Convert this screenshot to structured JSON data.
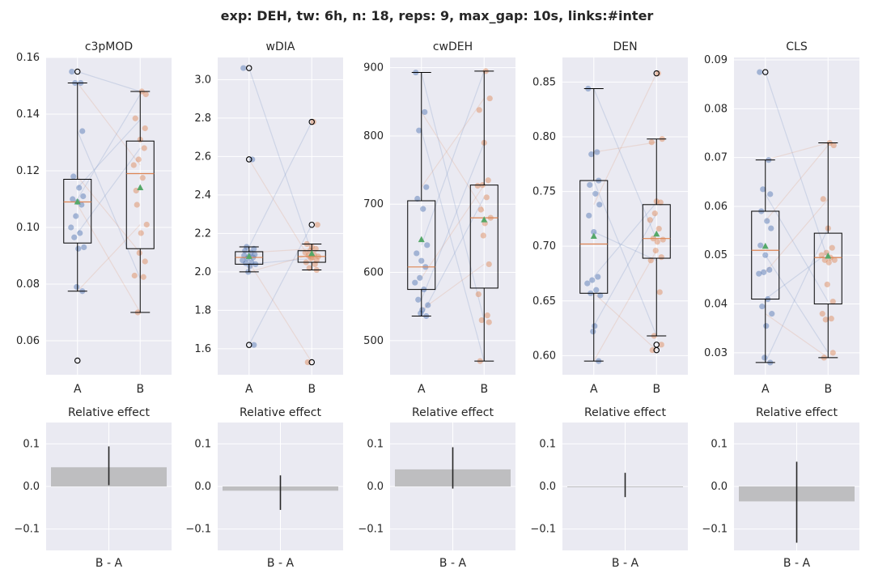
{
  "suptitle": "exp: DEH, tw: 6h, n: 18, reps: 9, max_gap: 10s, links:#inter",
  "colors": {
    "plot_bg": "#eaeaf2",
    "grid": "#ffffff",
    "group_a": "#4c72b0",
    "group_b": "#dd8452",
    "mean_marker": "#55a868",
    "median": "#dd8452",
    "effect_bar": "#bebec0",
    "error_line": "#262626"
  },
  "chart_data": [
    {
      "type": "box",
      "title": "c3pMOD",
      "categories": [
        "A",
        "B"
      ],
      "ylim": [
        0.048,
        0.16
      ],
      "yticks": [
        0.06,
        0.08,
        0.1,
        0.12,
        0.14,
        0.16
      ],
      "yticklabels": [
        "0.06",
        "0.08",
        "0.10",
        "0.12",
        "0.14",
        "0.16"
      ],
      "boxes": [
        {
          "q1": 0.0945,
          "median": 0.109,
          "q3": 0.117,
          "whislo": 0.0775,
          "whishi": 0.151,
          "mean": 0.109,
          "fliers": [
            0.053,
            0.155
          ]
        },
        {
          "q1": 0.0925,
          "median": 0.119,
          "q3": 0.1305,
          "whislo": 0.07,
          "whishi": 0.148,
          "mean": 0.114,
          "fliers": []
        }
      ],
      "points_a": [
        0.155,
        0.151,
        0.151,
        0.134,
        0.118,
        0.114,
        0.111,
        0.11,
        0.109,
        0.108,
        0.104,
        0.1,
        0.098,
        0.0965,
        0.093,
        0.0925,
        0.079,
        0.0775
      ],
      "points_b": [
        0.148,
        0.147,
        0.1385,
        0.131,
        0.128,
        0.124,
        0.122,
        0.1175,
        0.108,
        0.101,
        0.098,
        0.091,
        0.088,
        0.083,
        0.0825,
        0.07,
        0.135,
        0.113
      ],
      "links": [
        [
          0.155,
          0.148
        ],
        [
          0.151,
          0.122
        ],
        [
          0.134,
          0.082
        ],
        [
          0.118,
          0.091
        ],
        [
          0.11,
          0.147
        ],
        [
          0.108,
          0.07
        ],
        [
          0.098,
          0.128
        ],
        [
          0.0775,
          0.101
        ],
        [
          0.114,
          0.138
        ]
      ],
      "effect": {
        "label": "B - A",
        "title": "Relative effect",
        "value": 0.045,
        "ci": [
          0.003,
          0.094
        ]
      }
    },
    {
      "type": "box",
      "title": "wDIA",
      "categories": [
        "A",
        "B"
      ],
      "ylim": [
        1.465,
        3.115
      ],
      "yticks": [
        1.6,
        1.8,
        2.0,
        2.2,
        2.4,
        2.6,
        2.8,
        3.0
      ],
      "yticklabels": [
        "1.6",
        "1.8",
        "2.0",
        "2.2",
        "2.4",
        "2.6",
        "2.8",
        "3.0"
      ],
      "boxes": [
        {
          "q1": 2.04,
          "median": 2.075,
          "q3": 2.105,
          "whislo": 2.0,
          "whishi": 2.13,
          "mean": 2.08,
          "fliers": [
            3.06,
            2.585,
            1.62
          ]
        },
        {
          "q1": 2.05,
          "median": 2.08,
          "q3": 2.11,
          "whislo": 2.01,
          "whishi": 2.145,
          "mean": 2.095,
          "fliers": [
            2.78,
            2.245,
            1.53
          ]
        }
      ],
      "points_a": [
        3.06,
        2.585,
        2.13,
        2.12,
        2.11,
        2.1,
        2.09,
        2.085,
        2.08,
        2.075,
        2.07,
        2.06,
        2.05,
        2.045,
        2.04,
        2.03,
        2.0,
        1.62
      ],
      "points_b": [
        2.78,
        2.245,
        2.145,
        2.13,
        2.12,
        2.11,
        2.1,
        2.09,
        2.085,
        2.08,
        2.075,
        2.07,
        2.06,
        2.05,
        2.04,
        2.02,
        2.01,
        1.53
      ],
      "links": [
        [
          3.06,
          2.1
        ],
        [
          2.585,
          2.05
        ],
        [
          2.13,
          2.78
        ],
        [
          2.05,
          1.53
        ],
        [
          1.62,
          2.245
        ],
        [
          2.1,
          2.12
        ],
        [
          2.04,
          2.07
        ],
        [
          2.0,
          2.09
        ]
      ],
      "effect": {
        "label": "B - A",
        "title": "Relative effect",
        "value": -0.01,
        "ci": [
          -0.055,
          0.026
        ]
      }
    },
    {
      "type": "box",
      "title": "cwDEH",
      "categories": [
        "A",
        "B"
      ],
      "ylim": [
        450,
        915
      ],
      "yticks": [
        500,
        600,
        700,
        800,
        900
      ],
      "yticklabels": [
        "500",
        "600",
        "700",
        "800",
        "900"
      ],
      "boxes": [
        {
          "q1": 575,
          "median": 608,
          "q3": 705,
          "whislo": 536,
          "whishi": 893,
          "mean": 648,
          "fliers": []
        },
        {
          "q1": 577,
          "median": 680,
          "q3": 728,
          "whislo": 470,
          "whishi": 895,
          "mean": 677,
          "fliers": []
        }
      ],
      "points_a": [
        893,
        835,
        808,
        725,
        708,
        693,
        640,
        628,
        617,
        608,
        592,
        585,
        575,
        560,
        552,
        545,
        540,
        536
      ],
      "points_b": [
        895,
        855,
        838,
        790,
        735,
        728,
        727,
        710,
        692,
        680,
        672,
        654,
        612,
        568,
        537,
        530,
        527,
        470
      ],
      "links": [
        [
          893,
          530
        ],
        [
          835,
          690
        ],
        [
          808,
          470
        ],
        [
          725,
          855
        ],
        [
          640,
          895
        ],
        [
          592,
          728
        ],
        [
          560,
          790
        ],
        [
          545,
          612
        ],
        [
          536,
          710
        ]
      ],
      "effect": {
        "label": "B - A",
        "title": "Relative effect",
        "value": 0.04,
        "ci": [
          -0.005,
          0.092
        ]
      }
    },
    {
      "type": "box",
      "title": "DEN",
      "categories": [
        "A",
        "B"
      ],
      "ylim": [
        0.5825,
        0.8725
      ],
      "yticks": [
        0.6,
        0.65,
        0.7,
        0.75,
        0.8,
        0.85
      ],
      "yticklabels": [
        "0.60",
        "0.65",
        "0.70",
        "0.75",
        "0.80",
        "0.85"
      ],
      "boxes": [
        {
          "q1": 0.657,
          "median": 0.702,
          "q3": 0.76,
          "whislo": 0.595,
          "whishi": 0.844,
          "mean": 0.709,
          "fliers": []
        },
        {
          "q1": 0.689,
          "median": 0.707,
          "q3": 0.738,
          "whislo": 0.618,
          "whishi": 0.798,
          "mean": 0.711,
          "fliers": [
            0.858,
            0.61,
            0.605
          ]
        }
      ],
      "points_a": [
        0.844,
        0.786,
        0.784,
        0.76,
        0.756,
        0.748,
        0.738,
        0.728,
        0.713,
        0.672,
        0.669,
        0.666,
        0.66,
        0.657,
        0.655,
        0.627,
        0.622,
        0.595
      ],
      "points_b": [
        0.858,
        0.798,
        0.795,
        0.741,
        0.74,
        0.73,
        0.724,
        0.716,
        0.707,
        0.706,
        0.704,
        0.696,
        0.69,
        0.687,
        0.658,
        0.618,
        0.61,
        0.605
      ],
      "links": [
        [
          0.844,
          0.706
        ],
        [
          0.786,
          0.795
        ],
        [
          0.76,
          0.618
        ],
        [
          0.738,
          0.858
        ],
        [
          0.672,
          0.74
        ],
        [
          0.657,
          0.605
        ],
        [
          0.627,
          0.73
        ],
        [
          0.595,
          0.696
        ],
        [
          0.713,
          0.687
        ]
      ],
      "effect": {
        "label": "B - A",
        "title": "Relative effect",
        "value": 0.0,
        "ci": [
          -0.025,
          0.032
        ]
      }
    },
    {
      "type": "box",
      "title": "CLS",
      "categories": [
        "A",
        "B"
      ],
      "ylim": [
        0.0255,
        0.0905
      ],
      "yticks": [
        0.03,
        0.04,
        0.05,
        0.06,
        0.07,
        0.08,
        0.09
      ],
      "yticklabels": [
        "0.03",
        "0.04",
        "0.05",
        "0.06",
        "0.07",
        "0.08",
        "0.09"
      ],
      "boxes": [
        {
          "q1": 0.041,
          "median": 0.051,
          "q3": 0.059,
          "whislo": 0.028,
          "whishi": 0.0695,
          "mean": 0.0518,
          "fliers": [
            0.0875
          ]
        },
        {
          "q1": 0.04,
          "median": 0.0495,
          "q3": 0.0545,
          "whislo": 0.029,
          "whishi": 0.073,
          "mean": 0.0498,
          "fliers": []
        }
      ],
      "points_a": [
        0.0875,
        0.0695,
        0.0635,
        0.0625,
        0.059,
        0.057,
        0.0555,
        0.052,
        0.05,
        0.047,
        0.0465,
        0.0462,
        0.041,
        0.0395,
        0.038,
        0.0355,
        0.029,
        0.028
      ],
      "points_b": [
        0.073,
        0.0725,
        0.0615,
        0.0555,
        0.0515,
        0.0505,
        0.05,
        0.0495,
        0.049,
        0.049,
        0.0485,
        0.044,
        0.0405,
        0.038,
        0.037,
        0.0368,
        0.03,
        0.029
      ],
      "links": [
        [
          0.0875,
          0.049
        ],
        [
          0.0695,
          0.073
        ],
        [
          0.0625,
          0.0405
        ],
        [
          0.057,
          0.0725
        ],
        [
          0.05,
          0.03
        ],
        [
          0.0465,
          0.0615
        ],
        [
          0.041,
          0.0505
        ],
        [
          0.038,
          0.029
        ],
        [
          0.028,
          0.0555
        ]
      ],
      "effect": {
        "label": "B - A",
        "title": "Relative effect",
        "value": -0.035,
        "ci": [
          -0.132,
          0.058
        ]
      }
    }
  ],
  "effect_axis": {
    "ylim": [
      -0.15,
      0.15
    ],
    "yticks": [
      -0.1,
      0.0,
      0.1
    ],
    "yticklabels": [
      "−0.1",
      "0.0",
      "0.1"
    ]
  }
}
